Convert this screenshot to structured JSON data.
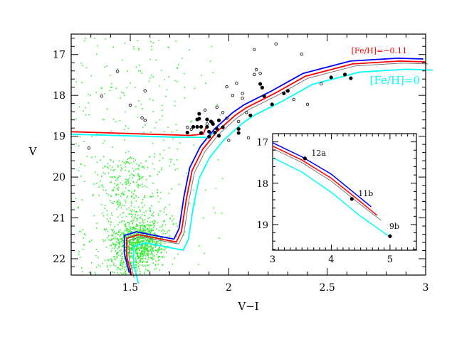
{
  "chart_data": {
    "type": "scatter",
    "xlabel": "V−I",
    "ylabel": "V",
    "xlim": [
      1.2,
      3.0
    ],
    "ylim": [
      22.4,
      16.5
    ],
    "xticks": [
      1.5,
      2,
      2.5,
      3
    ],
    "xtick_labels": [
      "1.5",
      "2",
      "2.5",
      "3"
    ],
    "yticks": [
      17,
      18,
      19,
      20,
      21,
      22
    ],
    "ytick_labels": [
      "17",
      "18",
      "19",
      "20",
      "21",
      "22"
    ],
    "colors": {
      "field": "#33ee33",
      "feh_m011": "#ff0000",
      "feh_0": "#00ffff",
      "blue": "#0000ff",
      "gray": "#777777",
      "stars": "#000000"
    },
    "annotations": [
      {
        "text": "[Fe/H]=−0.11",
        "color": "#ff0000"
      },
      {
        "text": "[Fe/H]=0",
        "color": "#00ffff"
      }
    ],
    "filled_stars": [
      [
        2.52,
        17.56
      ],
      [
        2.59,
        17.49
      ],
      [
        2.62,
        17.58
      ],
      [
        2.16,
        17.72
      ],
      [
        2.17,
        17.81
      ],
      [
        2.18,
        18.02
      ],
      [
        2.28,
        17.95
      ],
      [
        2.3,
        17.89
      ],
      [
        2.22,
        18.22
      ],
      [
        2.11,
        18.49
      ],
      [
        2.05,
        18.82
      ],
      [
        2.05,
        18.92
      ],
      [
        1.95,
        18.61
      ],
      [
        1.97,
        18.78
      ],
      [
        1.95,
        18.99
      ],
      [
        1.94,
        18.82
      ],
      [
        1.915,
        18.66
      ],
      [
        1.92,
        18.7
      ],
      [
        1.91,
        18.64
      ],
      [
        1.89,
        18.59
      ],
      [
        1.85,
        18.57
      ],
      [
        1.84,
        18.59
      ],
      [
        1.85,
        18.45
      ],
      [
        1.89,
        18.77
      ],
      [
        1.9,
        18.89
      ],
      [
        1.9,
        19.01
      ],
      [
        1.86,
        18.92
      ],
      [
        1.82,
        18.77
      ],
      [
        1.84,
        18.77
      ],
      [
        1.86,
        18.77
      ],
      [
        1.79,
        18.91
      ],
      [
        1.93,
        18.91
      ]
    ],
    "open_stars": [
      [
        2.24,
        16.74
      ],
      [
        2.37,
        16.99
      ],
      [
        2.14,
        17.37
      ],
      [
        2.13,
        17.49
      ],
      [
        2.16,
        17.46
      ],
      [
        1.99,
        17.79
      ],
      [
        2.04,
        17.7
      ],
      [
        2.07,
        17.95
      ],
      [
        2.02,
        18.0
      ],
      [
        2.07,
        18.07
      ],
      [
        2.33,
        18.1
      ],
      [
        2.4,
        18.22
      ],
      [
        2.47,
        17.72
      ],
      [
        1.94,
        18.29
      ],
      [
        1.97,
        18.42
      ],
      [
        1.88,
        18.36
      ],
      [
        1.99,
        18.56
      ],
      [
        2.09,
        18.42
      ],
      [
        2.05,
        18.64
      ],
      [
        2.1,
        19.04
      ],
      [
        2.0,
        19.1
      ],
      [
        1.79,
        18.78
      ],
      [
        1.81,
        18.83
      ],
      [
        1.89,
        18.7
      ],
      [
        1.435,
        17.41
      ],
      [
        1.575,
        17.89
      ],
      [
        1.355,
        18.02
      ],
      [
        1.575,
        18.61
      ],
      [
        1.29,
        19.29
      ],
      [
        1.5,
        18.24
      ],
      [
        2.13,
        16.88
      ],
      [
        1.56,
        18.55
      ]
    ],
    "isochrones": [
      {
        "name": "[Fe/H]=-0.11",
        "color": "#ff0000",
        "dx": 0,
        "dy": 0
      },
      {
        "name": "blue",
        "color": "#0000ff",
        "dx": -0.012,
        "dy": -0.07
      },
      {
        "name": "gray",
        "color": "#777777",
        "dx": 0.012,
        "dy": 0.05
      },
      {
        "name": "[Fe/H]=0",
        "color": "#00ffff",
        "dx": 0.035,
        "dy": 0.2
      }
    ],
    "isochrone_red_rgb": [
      [
        1.507,
        22.41
      ],
      [
        1.482,
        21.94
      ],
      [
        1.482,
        21.5
      ],
      [
        1.543,
        21.41
      ],
      [
        1.669,
        21.53
      ],
      [
        1.734,
        21.59
      ],
      [
        1.76,
        21.33
      ],
      [
        1.785,
        20.54
      ],
      [
        1.814,
        19.84
      ],
      [
        1.868,
        19.32
      ],
      [
        1.94,
        18.89
      ],
      [
        2.03,
        18.5
      ],
      [
        2.09,
        18.3
      ],
      [
        2.23,
        17.96
      ],
      [
        2.39,
        17.53
      ],
      [
        2.63,
        17.23
      ],
      [
        2.87,
        17.16
      ],
      [
        3.0,
        17.18
      ]
    ],
    "hb_red": [
      [
        1.2,
        18.89
      ],
      [
        1.6,
        18.95
      ],
      [
        1.8,
        18.98
      ],
      [
        1.87,
        18.95
      ],
      [
        1.885,
        18.78
      ]
    ],
    "hb_cyan": [
      [
        1.2,
        18.95
      ],
      [
        1.7,
        19.02
      ],
      [
        1.9,
        19.03
      ],
      [
        1.93,
        18.88
      ]
    ],
    "inset": {
      "xlim": [
        3,
        5.45
      ],
      "ylim": [
        19.62,
        16.8
      ],
      "xticks": [
        3,
        4,
        5
      ],
      "xtick_labels": [
        "3",
        "4",
        "5"
      ],
      "yticks": [
        17,
        18,
        19
      ],
      "ytick_labels": [
        "17",
        "18",
        "19"
      ],
      "points": [
        {
          "label": "12a",
          "x": 3.55,
          "y": 17.4
        },
        {
          "label": "11b",
          "x": 4.35,
          "y": 18.38
        },
        {
          "label": "9b",
          "x": 5.0,
          "y": 19.28
        }
      ],
      "lines": [
        {
          "color": "#0000ff",
          "pts": [
            [
              3,
              17.02
            ],
            [
              3.5,
              17.36
            ],
            [
              4,
              17.78
            ],
            [
              4.68,
              18.57
            ]
          ]
        },
        {
          "color": "#ff0000",
          "pts": [
            [
              3,
              17.1
            ],
            [
              3.5,
              17.44
            ],
            [
              4,
              17.88
            ],
            [
              4.5,
              18.45
            ],
            [
              4.78,
              18.78
            ]
          ]
        },
        {
          "color": "#777777",
          "pts": [
            [
              3,
              17.16
            ],
            [
              3.5,
              17.5
            ],
            [
              4,
              17.95
            ],
            [
              4.5,
              18.52
            ],
            [
              4.85,
              18.9
            ]
          ]
        },
        {
          "color": "#00ffff",
          "pts": [
            [
              3,
              17.38
            ],
            [
              3.5,
              17.73
            ],
            [
              4,
              18.22
            ],
            [
              4.5,
              18.8
            ],
            [
              5,
              19.3
            ]
          ]
        }
      ]
    }
  }
}
